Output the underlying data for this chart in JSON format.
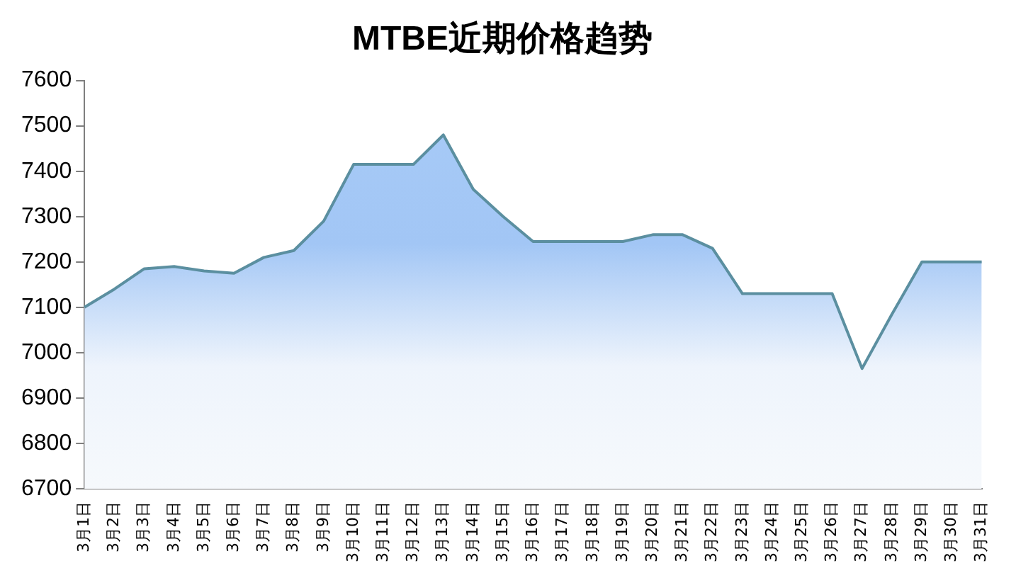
{
  "chart_data": {
    "type": "area",
    "title": "MTBE近期价格趋势",
    "categories": [
      "3月1日",
      "3月2日",
      "3月3日",
      "3月4日",
      "3月5日",
      "3月6日",
      "3月7日",
      "3月8日",
      "3月9日",
      "3月10日",
      "3月11日",
      "3月12日",
      "3月13日",
      "3月14日",
      "3月15日",
      "3月16日",
      "3月17日",
      "3月18日",
      "3月19日",
      "3月20日",
      "3月21日",
      "3月22日",
      "3月23日",
      "3月24日",
      "3月25日",
      "3月26日",
      "3月27日",
      "3月28日",
      "3月29日",
      "3月30日",
      "3月31日"
    ],
    "series": [
      {
        "color": "#5b8fa0",
        "values": [
          7100,
          7140,
          7185,
          7190,
          7180,
          7175,
          7210,
          7225,
          7290,
          7415,
          7415,
          7415,
          7480,
          7360,
          7300,
          7245,
          7245,
          7245,
          7245,
          7260,
          7260,
          7230,
          7130,
          7130,
          7130,
          7130,
          6965,
          7085,
          7200,
          7200,
          7200
        ]
      }
    ],
    "ylim": [
      6700,
      7600
    ],
    "yticks": [
      6700,
      6800,
      6900,
      7000,
      7100,
      7200,
      7300,
      7400,
      7500,
      7600
    ],
    "grid": false,
    "legend": false,
    "marker": "none",
    "line_style": "solid"
  }
}
